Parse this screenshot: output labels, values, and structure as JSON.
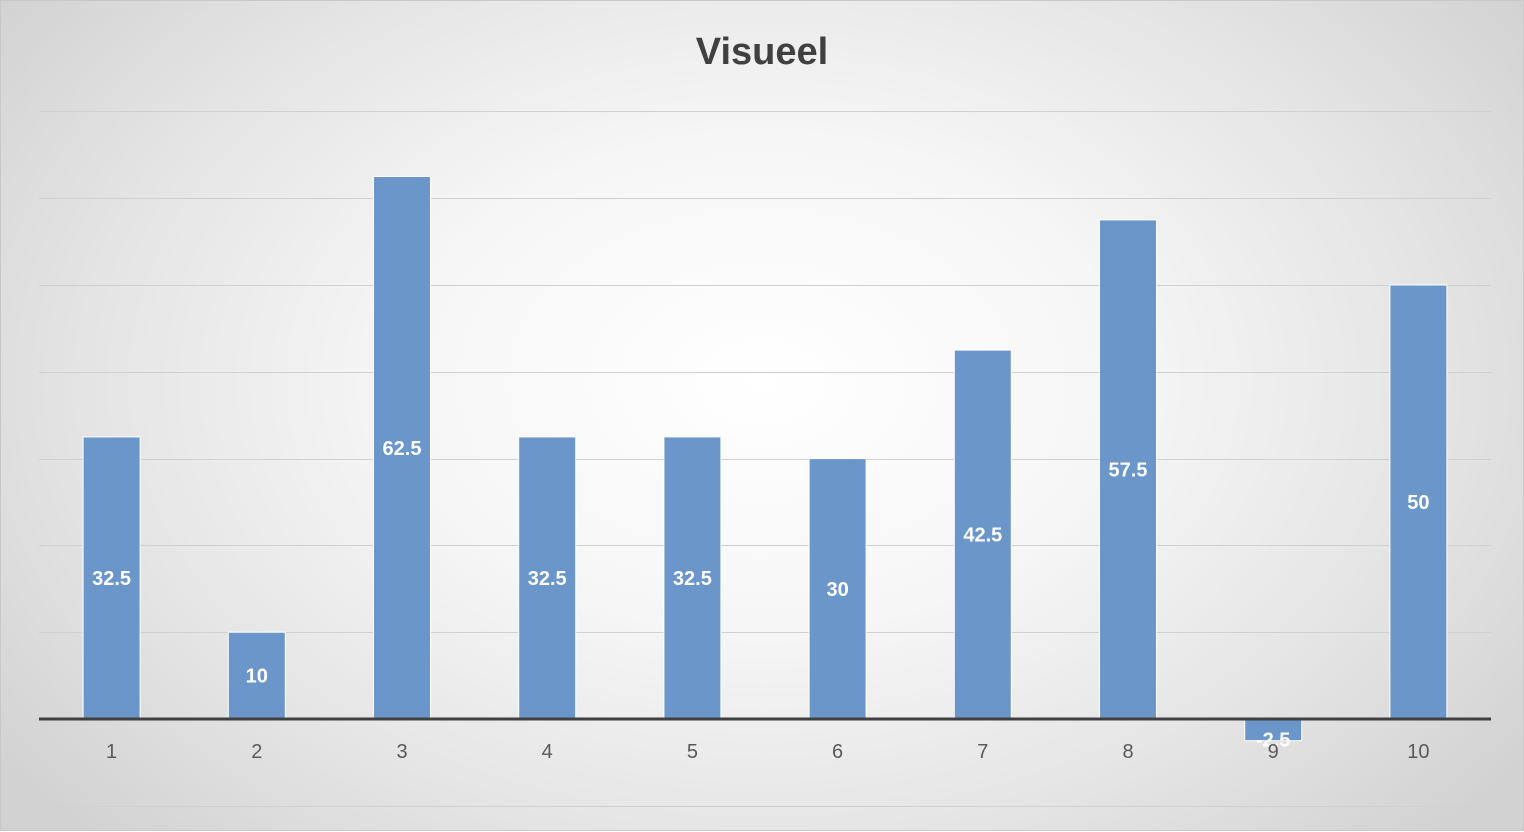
{
  "chart_data": {
    "type": "bar",
    "title": "Visueel",
    "xlabel": "",
    "ylabel": "",
    "categories": [
      "1",
      "2",
      "3",
      "4",
      "5",
      "6",
      "7",
      "8",
      "9",
      "10"
    ],
    "values": [
      32.5,
      10,
      62.5,
      32.5,
      32.5,
      30,
      42.5,
      57.5,
      -2.5,
      50
    ],
    "data_labels": [
      "32.5",
      "10",
      "62.5",
      "32.5",
      "32.5",
      "30",
      "42.5",
      "57.5",
      "-2.5",
      "50"
    ],
    "ylim": [
      -10,
      70
    ],
    "grid": true,
    "legend": "none",
    "colors": {
      "bar": "#6a96c9",
      "bar_edge": "#ffffff",
      "gridline": "#d0d0d0",
      "axis": "#404040",
      "label_text": "#ffffff",
      "tick_text": "#595959",
      "title_text": "#404040"
    }
  }
}
